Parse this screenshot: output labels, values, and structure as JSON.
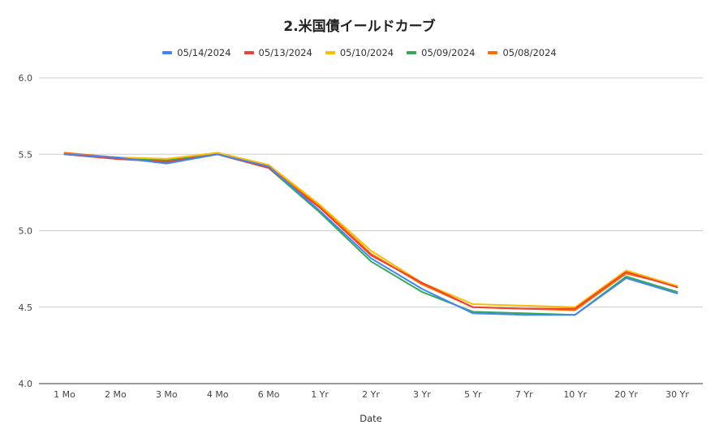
{
  "chart_data": {
    "type": "line",
    "title": "2.米国債イールドカーブ",
    "xlabel": "Date",
    "ylabel": "",
    "ylim": [
      4.0,
      6.0
    ],
    "yticks": [
      "4.0",
      "4.5",
      "5.0",
      "5.5",
      "6.0"
    ],
    "grid": true,
    "legend_position": "top",
    "categories": [
      "1 Mo",
      "2 Mo",
      "3 Mo",
      "4 Mo",
      "6 Mo",
      "1 Yr",
      "2 Yr",
      "3 Yr",
      "5 Yr",
      "7 Yr",
      "10 Yr",
      "20 Yr",
      "30 Yr"
    ],
    "series": [
      {
        "name": "05/08/2024",
        "color": "#ff6d01",
        "values": [
          5.51,
          5.48,
          5.45,
          5.5,
          5.42,
          5.16,
          4.85,
          4.65,
          4.5,
          4.49,
          4.48,
          4.72,
          4.64
        ]
      },
      {
        "name": "05/09/2024",
        "color": "#34a853",
        "values": [
          5.5,
          5.48,
          5.46,
          5.5,
          5.41,
          5.12,
          4.8,
          4.6,
          4.47,
          4.46,
          4.45,
          4.7,
          4.6
        ]
      },
      {
        "name": "05/10/2024",
        "color": "#fbbc04",
        "values": [
          5.5,
          5.48,
          5.47,
          5.51,
          5.43,
          5.17,
          4.87,
          4.66,
          4.52,
          4.51,
          4.5,
          4.74,
          4.64
        ]
      },
      {
        "name": "05/13/2024",
        "color": "#ea4335",
        "values": [
          5.5,
          5.47,
          5.45,
          5.5,
          5.41,
          5.15,
          4.84,
          4.66,
          4.5,
          4.49,
          4.49,
          4.73,
          4.63
        ]
      },
      {
        "name": "05/14/2024",
        "color": "#4285f4",
        "values": [
          5.5,
          5.48,
          5.44,
          5.5,
          5.42,
          5.13,
          4.82,
          4.62,
          4.46,
          4.45,
          4.45,
          4.69,
          4.59
        ]
      }
    ],
    "legend_order": [
      "05/14/2024",
      "05/13/2024",
      "05/10/2024",
      "05/09/2024",
      "05/08/2024"
    ]
  }
}
